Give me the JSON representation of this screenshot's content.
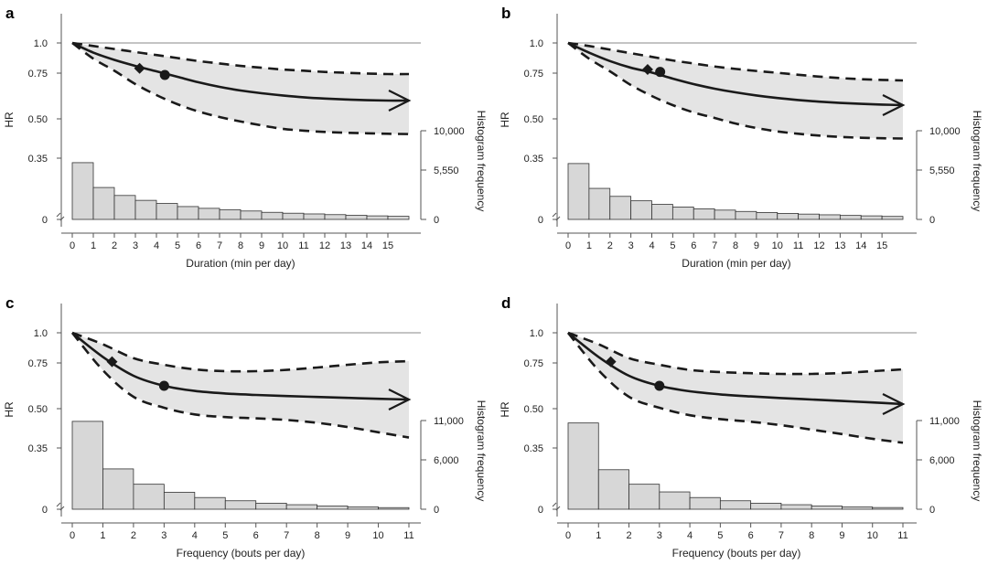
{
  "figure": {
    "panels": [
      "a",
      "b",
      "c",
      "d"
    ]
  },
  "chart_data": [
    {
      "panel": "a",
      "type": "line",
      "xlabel": "Duration (min per day)",
      "ylabel": "HR",
      "y2label": "Histogram frequency",
      "xticks": [
        "0",
        "1",
        "2",
        "3",
        "4",
        "5",
        "6",
        "7",
        "8",
        "9",
        "10",
        "11",
        "12",
        "13",
        "14",
        "15"
      ],
      "xlim": [
        0,
        16
      ],
      "yticks": [
        "1.0",
        "0.75",
        "0.50",
        "0.35",
        "0"
      ],
      "y2ticks": [
        "10,000",
        "5,550",
        "0"
      ],
      "y2lim": [
        0,
        10000
      ],
      "reference_line": 1.0,
      "curve": {
        "x": [
          0,
          1,
          2,
          3,
          4,
          5,
          6,
          7,
          8,
          9,
          10,
          11,
          12,
          13,
          14,
          15,
          16
        ],
        "hr": [
          1.0,
          0.92,
          0.86,
          0.81,
          0.765,
          0.73,
          0.7,
          0.675,
          0.655,
          0.64,
          0.628,
          0.618,
          0.611,
          0.606,
          0.602,
          0.6,
          0.6
        ],
        "lower": [
          1.0,
          0.87,
          0.77,
          0.69,
          0.63,
          0.58,
          0.54,
          0.51,
          0.49,
          0.475,
          0.462,
          0.455,
          0.45,
          0.447,
          0.445,
          0.443,
          0.442
        ],
        "upper": [
          1.0,
          0.975,
          0.95,
          0.925,
          0.9,
          0.875,
          0.85,
          0.83,
          0.81,
          0.795,
          0.78,
          0.77,
          0.76,
          0.753,
          0.748,
          0.745,
          0.745
        ]
      },
      "markers": [
        {
          "shape": "diamond",
          "x": 3.2,
          "hr": 0.79
        },
        {
          "shape": "circle",
          "x": 4.4,
          "hr": 0.74
        }
      ],
      "histogram": {
        "bin_width": 1,
        "values": [
          6400,
          3600,
          2700,
          2150,
          1800,
          1450,
          1250,
          1100,
          950,
          800,
          700,
          620,
          540,
          460,
          400,
          350
        ]
      }
    },
    {
      "panel": "b",
      "type": "line",
      "xlabel": "Duration (min per day)",
      "ylabel": "HR",
      "y2label": "Histogram frequency",
      "xticks": [
        "0",
        "1",
        "2",
        "3",
        "4",
        "5",
        "6",
        "7",
        "8",
        "9",
        "10",
        "11",
        "12",
        "13",
        "14",
        "15"
      ],
      "xlim": [
        0,
        16
      ],
      "yticks": [
        "1.0",
        "0.75",
        "0.50",
        "0.35",
        "0"
      ],
      "y2ticks": [
        "10,000",
        "5,550",
        "0"
      ],
      "y2lim": [
        0,
        10000
      ],
      "reference_line": 1.0,
      "curve": {
        "x": [
          0,
          1,
          2,
          3,
          4,
          5,
          6,
          7,
          8,
          9,
          10,
          11,
          12,
          13,
          14,
          15,
          16
        ],
        "hr": [
          1.0,
          0.92,
          0.85,
          0.795,
          0.755,
          0.72,
          0.69,
          0.665,
          0.645,
          0.628,
          0.614,
          0.603,
          0.594,
          0.587,
          0.582,
          0.578,
          0.575
        ],
        "lower": [
          1.0,
          0.87,
          0.765,
          0.685,
          0.625,
          0.575,
          0.535,
          0.505,
          0.482,
          0.465,
          0.452,
          0.443,
          0.436,
          0.431,
          0.428,
          0.426,
          0.425
        ],
        "upper": [
          1.0,
          0.975,
          0.945,
          0.915,
          0.885,
          0.855,
          0.83,
          0.805,
          0.785,
          0.768,
          0.753,
          0.741,
          0.731,
          0.723,
          0.717,
          0.713,
          0.71
        ]
      },
      "markers": [
        {
          "shape": "diamond",
          "x": 3.8,
          "hr": 0.78
        },
        {
          "shape": "circle",
          "x": 4.4,
          "hr": 0.76
        }
      ],
      "histogram": {
        "bin_width": 1,
        "values": [
          6300,
          3500,
          2600,
          2100,
          1700,
          1400,
          1200,
          1050,
          900,
          780,
          680,
          600,
          520,
          450,
          400,
          340
        ]
      }
    },
    {
      "panel": "c",
      "type": "line",
      "xlabel": "Frequency (bouts per day)",
      "ylabel": "HR",
      "y2label": "Histogram frequency",
      "xticks": [
        "0",
        "1",
        "2",
        "3",
        "4",
        "5",
        "6",
        "7",
        "8",
        "9",
        "10",
        "11"
      ],
      "xlim": [
        0,
        11
      ],
      "yticks": [
        "1.0",
        "0.75",
        "0.50",
        "0.35",
        "0"
      ],
      "y2ticks": [
        "11,000",
        "6,000",
        "0"
      ],
      "y2lim": [
        0,
        11000
      ],
      "reference_line": 1.0,
      "curve": {
        "x": [
          0,
          1,
          2,
          3,
          4,
          5,
          6,
          7,
          8,
          9,
          10,
          11
        ],
        "hr": [
          1.0,
          0.8,
          0.68,
          0.625,
          0.597,
          0.583,
          0.575,
          0.569,
          0.564,
          0.559,
          0.554,
          0.55
        ],
        "lower": [
          1.0,
          0.71,
          0.565,
          0.505,
          0.478,
          0.468,
          0.463,
          0.457,
          0.446,
          0.43,
          0.41,
          0.39
        ],
        "upper": [
          1.0,
          0.905,
          0.79,
          0.74,
          0.715,
          0.705,
          0.705,
          0.712,
          0.725,
          0.74,
          0.755,
          0.765
        ]
      },
      "markers": [
        {
          "shape": "diamond",
          "x": 1.3,
          "hr": 0.76
        },
        {
          "shape": "circle",
          "x": 3.0,
          "hr": 0.625
        }
      ],
      "histogram": {
        "bin_width": 1,
        "values": [
          10900,
          5000,
          3100,
          2100,
          1450,
          1050,
          750,
          560,
          400,
          280,
          200
        ]
      }
    },
    {
      "panel": "d",
      "type": "line",
      "xlabel": "Frequency (bouts per day)",
      "ylabel": "HR",
      "y2label": "Histogram frequency",
      "xticks": [
        "0",
        "1",
        "2",
        "3",
        "4",
        "5",
        "6",
        "7",
        "8",
        "9",
        "10",
        "11"
      ],
      "xlim": [
        0,
        11
      ],
      "yticks": [
        "1.0",
        "0.75",
        "0.50",
        "0.35",
        "0"
      ],
      "y2ticks": [
        "11,000",
        "6,000",
        "0"
      ],
      "y2lim": [
        0,
        11000
      ],
      "reference_line": 1.0,
      "curve": {
        "x": [
          0,
          1,
          2,
          3,
          4,
          5,
          6,
          7,
          8,
          9,
          10,
          11
        ],
        "hr": [
          1.0,
          0.8,
          0.68,
          0.625,
          0.595,
          0.578,
          0.567,
          0.558,
          0.55,
          0.542,
          0.534,
          0.525
        ],
        "lower": [
          1.0,
          0.71,
          0.565,
          0.505,
          0.475,
          0.46,
          0.45,
          0.437,
          0.42,
          0.403,
          0.385,
          0.37
        ],
        "upper": [
          1.0,
          0.905,
          0.79,
          0.74,
          0.712,
          0.7,
          0.694,
          0.69,
          0.69,
          0.695,
          0.705,
          0.715
        ]
      },
      "markers": [
        {
          "shape": "diamond",
          "x": 1.4,
          "hr": 0.76
        },
        {
          "shape": "circle",
          "x": 3.0,
          "hr": 0.625
        }
      ],
      "histogram": {
        "bin_width": 1,
        "values": [
          10700,
          4900,
          3100,
          2150,
          1450,
          1050,
          750,
          560,
          400,
          280,
          210
        ]
      }
    }
  ]
}
